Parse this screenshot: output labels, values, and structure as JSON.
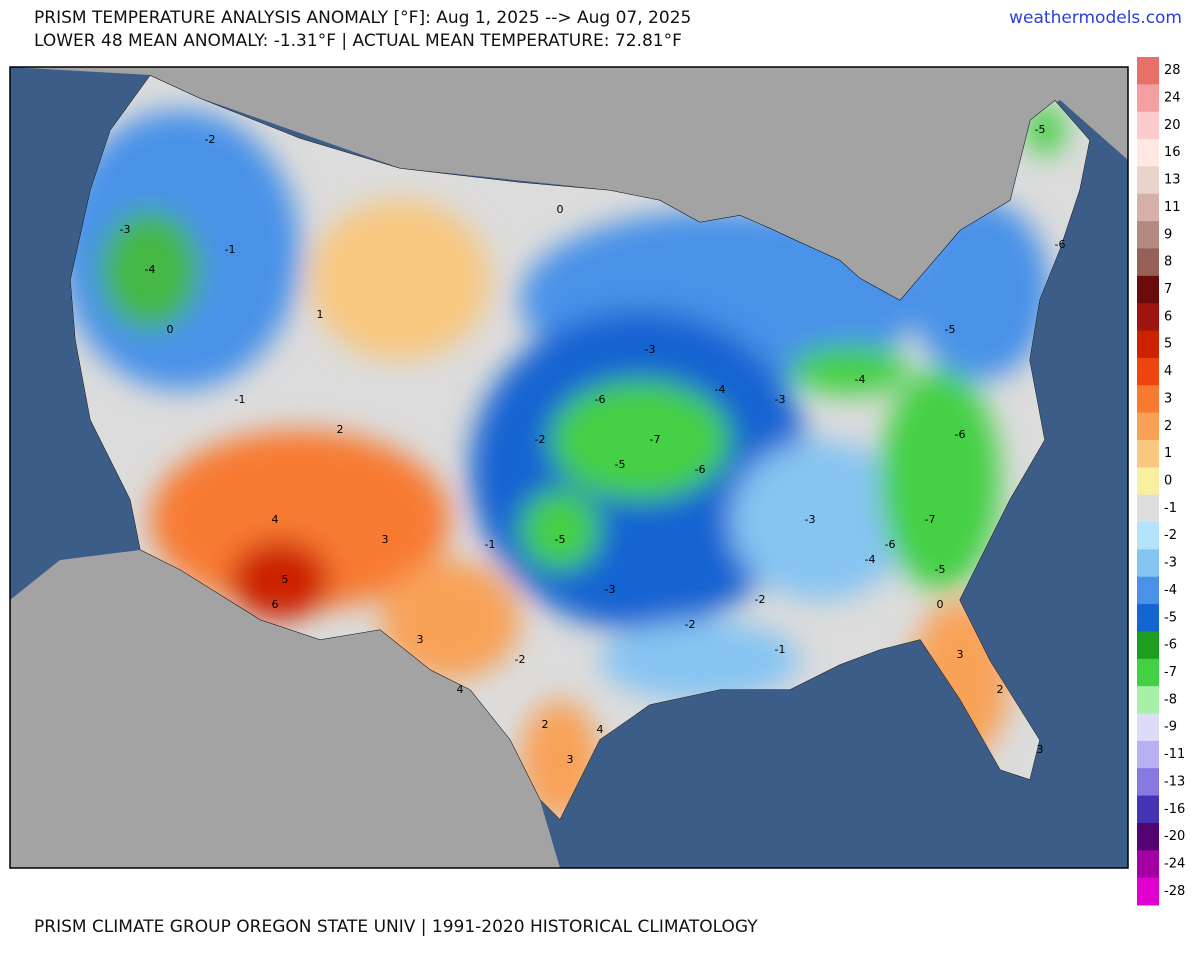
{
  "header": {
    "title": "PRISM TEMPERATURE ANALYSIS ANOMALY [°F]: Aug 1, 2025 --> Aug 07, 2025",
    "subtitle": "LOWER 48 MEAN ANOMALY: -1.31°F | ACTUAL MEAN TEMPERATURE: 72.81°F",
    "site": "weathermodels.com"
  },
  "footer": "PRISM CLIMATE GROUP OREGON STATE UNIV | 1991-2020 HISTORICAL CLIMATOLOGY",
  "colorbar": {
    "levels": [
      28,
      24,
      20,
      16,
      13,
      11,
      9,
      8,
      7,
      6,
      5,
      4,
      3,
      2,
      1,
      0,
      -1,
      -2,
      -3,
      -4,
      -5,
      -6,
      -7,
      -8,
      -9,
      -11,
      -13,
      -16,
      -20,
      -24,
      -28
    ],
    "colors": [
      "#e8706a",
      "#f4a0a0",
      "#fbcaca",
      "#fde8e4",
      "#ead4cc",
      "#d4b0a8",
      "#b48a80",
      "#946058",
      "#6a0c0c",
      "#9e1410",
      "#cc2200",
      "#ee4410",
      "#f87a30",
      "#f8a258",
      "#f8c880",
      "#f8f0a0",
      "#dedede",
      "#b4e2f8",
      "#86c4f2",
      "#4a92e8",
      "#1464d2",
      "#1e9e1e",
      "#44d044",
      "#a8f0a8",
      "#dcdcf8",
      "#b8b0f2",
      "#8878e2",
      "#4434b4",
      "#540470",
      "#a400a4",
      "#e000d0"
    ]
  },
  "map_labels": [
    -6,
    -7,
    -5,
    -6,
    -5,
    -4,
    -3,
    -2,
    0,
    1,
    2,
    3,
    4,
    5,
    6,
    -1,
    -2,
    -3,
    -4,
    -5,
    -6,
    -7,
    -6,
    -5,
    -4,
    -3,
    -2,
    -1,
    0,
    3,
    2,
    3,
    4,
    3,
    -2,
    -3,
    -1,
    0,
    -1,
    -4,
    -5,
    -6,
    2,
    3,
    4,
    -2,
    -3
  ]
}
